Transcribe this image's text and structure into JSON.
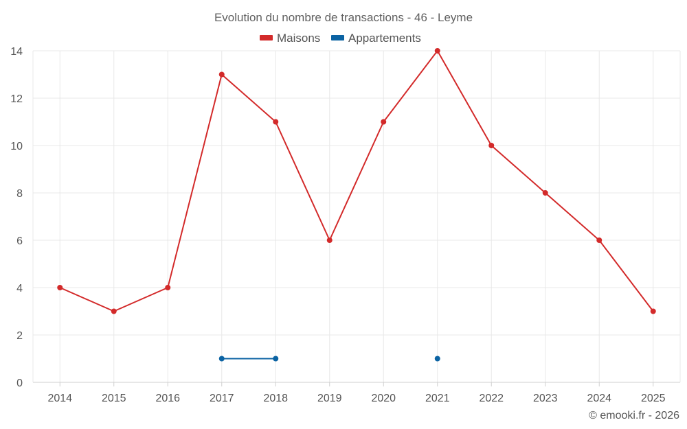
{
  "chart_data": {
    "type": "line",
    "title": "Evolution du nombre de transactions - 46 - Leyme",
    "categories": [
      "2014",
      "2015",
      "2016",
      "2017",
      "2018",
      "2019",
      "2020",
      "2021",
      "2022",
      "2023",
      "2024",
      "2025"
    ],
    "series": [
      {
        "name": "Maisons",
        "color": "#d32a2a",
        "values": [
          4,
          3,
          4,
          13,
          11,
          6,
          11,
          14,
          10,
          8,
          6,
          3
        ]
      },
      {
        "name": "Appartements",
        "color": "#0b63a3",
        "values": [
          null,
          null,
          null,
          1,
          1,
          null,
          null,
          1,
          null,
          null,
          null,
          null
        ]
      }
    ],
    "ylim": [
      0,
      14
    ],
    "yticks": [
      0,
      2,
      4,
      6,
      8,
      10,
      12,
      14
    ],
    "xlabel": "",
    "ylabel": "",
    "grid": true,
    "legend_position": "top-center"
  },
  "footer": {
    "credit": "© emooki.fr - 2026"
  }
}
